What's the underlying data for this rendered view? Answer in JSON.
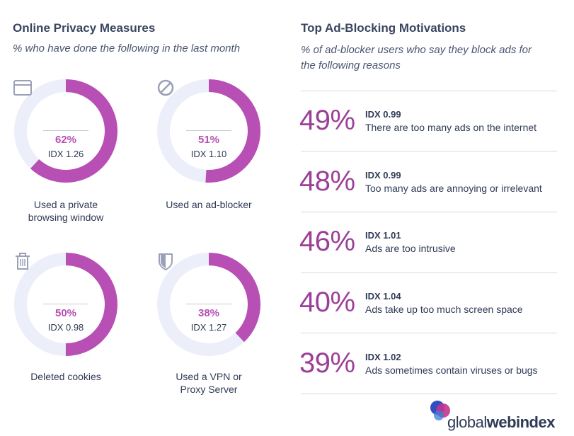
{
  "left": {
    "title": "Online Privacy Measures",
    "subtitle": "% who have done the following in the last month"
  },
  "right": {
    "title": "Top Ad-Blocking Motivations",
    "subtitle": "% of ad-blocker users who say they block ads for the following reasons"
  },
  "colors": {
    "accent": "#b84fb4",
    "track": "#eceefa",
    "text": "#2e3a55",
    "pct_dark": "#9b3f98"
  },
  "brand": {
    "plain": "global",
    "bold": "webindex"
  },
  "chart_data": [
    {
      "type": "pie",
      "items": [
        {
          "icon": "browser-window-icon",
          "value": 62,
          "pct_label": "62%",
          "idx": "IDX 1.26",
          "caption": [
            "Used a private",
            "browsing window"
          ]
        },
        {
          "icon": "block-icon",
          "value": 51,
          "pct_label": "51%",
          "idx": "IDX 1.10",
          "caption": [
            "Used an ad-blocker"
          ]
        },
        {
          "icon": "trash-icon",
          "value": 50,
          "pct_label": "50%",
          "idx": "IDX 0.98",
          "caption": [
            "Deleted cookies"
          ]
        },
        {
          "icon": "shield-icon",
          "value": 38,
          "pct_label": "38%",
          "idx": "IDX 1.27",
          "caption": [
            "Used a VPN or",
            "Proxy Server"
          ]
        }
      ]
    },
    {
      "type": "table",
      "rows": [
        {
          "value": 49,
          "pct_label": "49%",
          "idx": "IDX 0.99",
          "reason": "There are too many ads on the internet"
        },
        {
          "value": 48,
          "pct_label": "48%",
          "idx": "IDX 0.99",
          "reason": "Too many ads are annoying or irrelevant"
        },
        {
          "value": 46,
          "pct_label": "46%",
          "idx": "IDX 1.01",
          "reason": "Ads are too intrusive"
        },
        {
          "value": 40,
          "pct_label": "40%",
          "idx": "IDX 1.04",
          "reason": "Ads take up too much screen space"
        },
        {
          "value": 39,
          "pct_label": "39%",
          "idx": "IDX 1.02",
          "reason": "Ads sometimes contain viruses or bugs"
        }
      ]
    }
  ]
}
